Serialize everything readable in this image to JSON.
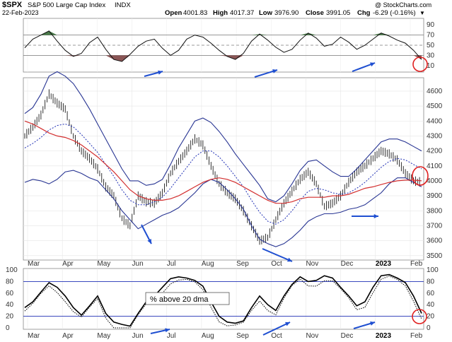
{
  "header": {
    "symbol": "$SPX",
    "name": "S&P 500 Large Cap Index",
    "exchange": "INDX",
    "date": "22-Feb-2023",
    "open_label": "Open",
    "open": "4001.83",
    "high_label": "High",
    "high": "4017.37",
    "low_label": "Low",
    "low": "3976.90",
    "close_label": "Close",
    "close": "3991.05",
    "chg_label": "Chg",
    "chg": "-6.29 (-0.16%)",
    "chg_marker": "▼",
    "watermark": "@ StockCharts.com"
  },
  "colors": {
    "price_bar": "#1a1a1a",
    "bollinger": "#283593",
    "ma_short_dotted": "#1f2fb5",
    "ma_long": "#d32f2f",
    "rsi_overbought_fill": "#4a7b4a",
    "rsi_oversold_fill": "#8a5555",
    "arrow": "#1f4fd1",
    "highlight_circle": "#e02020",
    "breadth_line": "#000000"
  },
  "chart_data": [
    {
      "type": "line",
      "panel": "RSI",
      "y_ticks": [
        10,
        30,
        50,
        70,
        90
      ],
      "reference_lines": [
        30,
        50,
        70
      ],
      "ylim": [
        0,
        100
      ],
      "x_labels": [
        "Mar",
        "Apr",
        "May",
        "Jun",
        "Jul",
        "Aug",
        "Sep",
        "Oct",
        "Nov",
        "Dec",
        "2023",
        "Feb"
      ],
      "series": [
        {
          "values": [
            45,
            62,
            70,
            78,
            58,
            40,
            28,
            34,
            55,
            66,
            42,
            22,
            18,
            32,
            48,
            58,
            62,
            44,
            30,
            40,
            62,
            70,
            66,
            54,
            40,
            28,
            22,
            34,
            58,
            72,
            60,
            46,
            36,
            42,
            60,
            74,
            64,
            48,
            52,
            66,
            56,
            42,
            50,
            62,
            74,
            68,
            60,
            54,
            40,
            22
          ]
        }
      ]
    },
    {
      "type": "line",
      "panel": "Price",
      "y_ticks": [
        3500,
        3600,
        3700,
        3800,
        3900,
        4000,
        4100,
        4200,
        4300,
        4400,
        4500,
        4600
      ],
      "ylim": [
        3480,
        4680
      ],
      "x_labels": [
        "Mar",
        "Apr",
        "May",
        "Jun",
        "Jul",
        "Aug",
        "Sep",
        "Oct",
        "Nov",
        "Dec",
        "2023",
        "Feb"
      ],
      "series": [
        {
          "values": [
            4300,
            4360,
            4440,
            4580,
            4520,
            4480,
            4300,
            4200,
            4150,
            4080,
            3960,
            3900,
            3750,
            3700,
            3900,
            3860,
            3850,
            3920,
            4050,
            4130,
            4200,
            4280,
            4240,
            4100,
            3980,
            3920,
            3880,
            3800,
            3700,
            3600,
            3620,
            3740,
            3850,
            3930,
            4010,
            4060,
            3980,
            3830,
            3850,
            3900,
            3990,
            4060,
            4100,
            4150,
            4200,
            4180,
            4140,
            4050,
            4000,
            3991
          ]
        },
        {
          "values": [
            4220,
            4250,
            4290,
            4340,
            4370,
            4380,
            4360,
            4310,
            4250,
            4190,
            4110,
            4030,
            3940,
            3870,
            3840,
            3840,
            3860,
            3890,
            3950,
            4020,
            4090,
            4160,
            4200,
            4200,
            4160,
            4100,
            4030,
            3960,
            3870,
            3790,
            3730,
            3710,
            3740,
            3800,
            3870,
            3930,
            3950,
            3940,
            3920,
            3910,
            3920,
            3950,
            3990,
            4040,
            4090,
            4130,
            4150,
            4140,
            4110,
            4080
          ]
        },
        {
          "values": [
            4400,
            4380,
            4350,
            4320,
            4300,
            4290,
            4270,
            4240,
            4200,
            4160,
            4110,
            4060,
            4000,
            3940,
            3900,
            3880,
            3870,
            3870,
            3880,
            3900,
            3930,
            3960,
            3990,
            4010,
            4020,
            4010,
            3990,
            3960,
            3930,
            3900,
            3870,
            3850,
            3850,
            3860,
            3880,
            3890,
            3890,
            3890,
            3900,
            3900,
            3910,
            3930,
            3950,
            3960,
            3975,
            3990,
            4000,
            4005,
            4005,
            4000
          ]
        },
        {
          "values": [
            4450,
            4490,
            4580,
            4700,
            4730,
            4700,
            4650,
            4570,
            4480,
            4380,
            4280,
            4180,
            4080,
            4000,
            4000,
            3970,
            3980,
            4010,
            4110,
            4220,
            4310,
            4400,
            4420,
            4390,
            4330,
            4260,
            4180,
            4110,
            4040,
            3970,
            3880,
            3860,
            3900,
            3980,
            4070,
            4130,
            4140,
            4100,
            4060,
            4030,
            4030,
            4080,
            4140,
            4200,
            4260,
            4280,
            4280,
            4260,
            4230,
            4200
          ]
        },
        {
          "values": [
            3990,
            4010,
            4000,
            3980,
            4010,
            4060,
            4070,
            4050,
            4020,
            4000,
            3940,
            3880,
            3800,
            3740,
            3680,
            3710,
            3740,
            3770,
            3790,
            3820,
            3870,
            3920,
            3980,
            4010,
            3990,
            3940,
            3880,
            3810,
            3700,
            3610,
            3580,
            3560,
            3580,
            3620,
            3670,
            3730,
            3760,
            3780,
            3780,
            3790,
            3810,
            3820,
            3840,
            3880,
            3920,
            3980,
            4020,
            4020,
            3990,
            3960
          ]
        }
      ]
    },
    {
      "type": "line",
      "panel": "% above 20 dma",
      "y_ticks": [
        0,
        20,
        40,
        60,
        80,
        100
      ],
      "reference_lines": [
        20,
        80
      ],
      "ylim": [
        0,
        100
      ],
      "x_labels": [
        "Mar",
        "Apr",
        "May",
        "Jun",
        "Jul",
        "Aug",
        "Sep",
        "Oct",
        "Nov",
        "Dec",
        "2023",
        "Feb"
      ],
      "series": [
        {
          "name": "% above 20 dma",
          "values": [
            35,
            45,
            62,
            78,
            70,
            55,
            35,
            22,
            38,
            55,
            25,
            10,
            6,
            3,
            25,
            45,
            55,
            70,
            85,
            88,
            86,
            82,
            72,
            45,
            20,
            10,
            8,
            12,
            35,
            55,
            40,
            30,
            55,
            75,
            88,
            80,
            82,
            90,
            86,
            70,
            55,
            38,
            45,
            70,
            90,
            92,
            86,
            78,
            55,
            25
          ]
        }
      ]
    }
  ],
  "annotations": {
    "panel_label": "% above 20 dma"
  }
}
